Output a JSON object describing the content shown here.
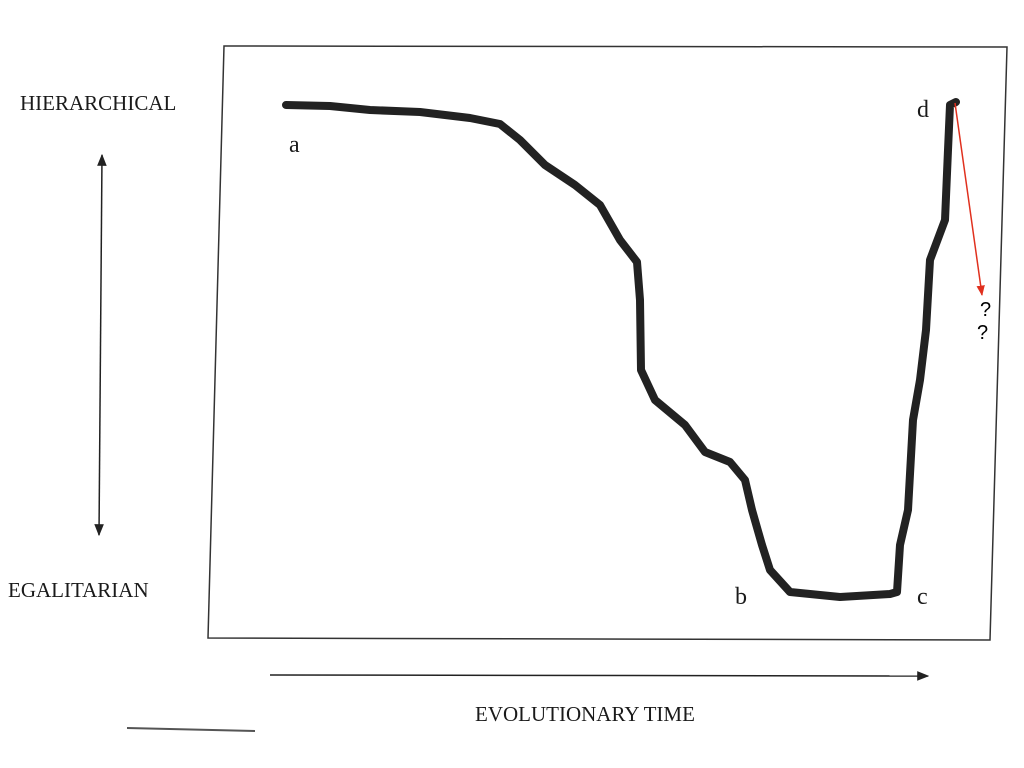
{
  "axes": {
    "y_top": "HIERARCHICAL",
    "y_bottom": "EGALITARIAN",
    "x": "EVOLUTIONARY TIME"
  },
  "points": [
    "a",
    "b",
    "c",
    "d"
  ],
  "annotation": [
    "?",
    "?"
  ]
}
